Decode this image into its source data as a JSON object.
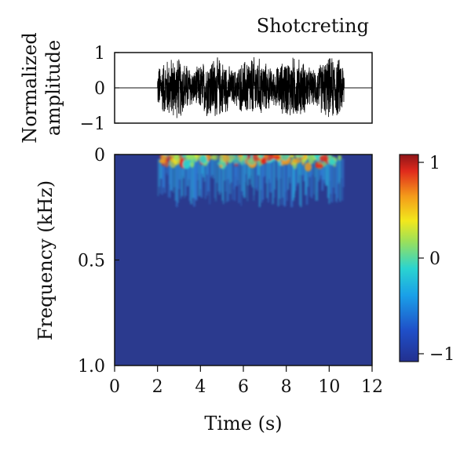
{
  "chart_data": [
    {
      "type": "line",
      "panel": "waveform",
      "title": "Shotcreting",
      "ylabel_lines": [
        "Normalized",
        "amplitude"
      ],
      "ylim": [
        -1,
        1
      ],
      "xlim": [
        0,
        12
      ],
      "y_ticks": [
        1,
        0,
        -1
      ],
      "y_tick_labels": [
        "1",
        "0",
        "−1"
      ],
      "signal": {
        "active_start": 2.0,
        "active_end": 10.7,
        "peak_amplitude": 0.95,
        "baseline": 0
      },
      "line_color": "#000000"
    },
    {
      "type": "heatmap",
      "panel": "spectrogram",
      "xlabel": "Time (s)",
      "ylabel": "Frequency (kHz)",
      "xlim": [
        0,
        12
      ],
      "ylim": [
        0,
        1.0
      ],
      "y_inverted": true,
      "x_ticks": [
        0,
        2,
        4,
        6,
        8,
        10,
        12
      ],
      "x_tick_labels": [
        "0",
        "2",
        "4",
        "6",
        "8",
        "10",
        "12"
      ],
      "y_ticks": [
        0,
        0.5,
        1.0
      ],
      "y_tick_labels": [
        "0",
        "0.5",
        "1.0"
      ],
      "energy_band": {
        "time_start": 2.0,
        "time_end": 10.7,
        "freq_max": 0.25
      },
      "colorbar": {
        "range": [
          -1,
          1
        ],
        "ticks": [
          1,
          0,
          -1
        ],
        "tick_labels": [
          "1",
          "0",
          "−1"
        ],
        "colormap": "jet"
      },
      "background_color": "#2b3a8e"
    }
  ]
}
